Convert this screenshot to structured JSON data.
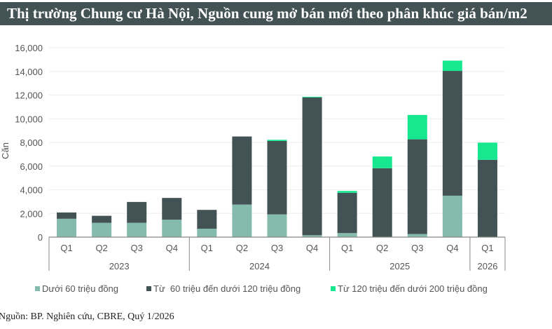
{
  "title": "Thị trường Chung cư Hà Nội, Nguồn cung mở bán mới theo phân khúc giá bán/m2",
  "source": "Nguồn: BP. Nghiên cứu, CBRE, Quý 1/2026",
  "chart_data": {
    "type": "bar",
    "stacked": true,
    "ylabel": "Căn",
    "ylim": [
      0,
      16000
    ],
    "yticks": [
      0,
      2000,
      4000,
      6000,
      8000,
      10000,
      12000,
      14000,
      16000
    ],
    "ytick_labels": [
      "0",
      "2,000",
      "4,000",
      "6,000",
      "8,000",
      "10,000",
      "12,000",
      "14,000",
      "16,000"
    ],
    "grid": true,
    "legend_position": "bottom",
    "categories": [
      "Q1",
      "Q2",
      "Q3",
      "Q4",
      "Q1",
      "Q2",
      "Q3",
      "Q4",
      "Q1",
      "Q2",
      "Q3",
      "Q4",
      "Q1"
    ],
    "groups": [
      {
        "label": "2023",
        "count": 4
      },
      {
        "label": "2024",
        "count": 4
      },
      {
        "label": "2025",
        "count": 4
      },
      {
        "label": "2026",
        "count": 1
      }
    ],
    "series": [
      {
        "name": "Dưới 60 triệu đồng",
        "color": "#84bbad",
        "values": [
          1550,
          1210,
          1210,
          1470,
          710,
          2750,
          1920,
          160,
          340,
          0,
          260,
          3500,
          0
        ]
      },
      {
        "name": "Từ  60 triệu đến dưới 120 triệu đồng",
        "color": "#435254",
        "values": [
          530,
          590,
          1760,
          1840,
          1590,
          5750,
          6200,
          11640,
          3400,
          5820,
          8000,
          10540,
          6530
        ]
      },
      {
        "name": "Từ 120 triệu đến dưới 200 triệu đồng",
        "color": "#17e88f",
        "values": [
          0,
          0,
          0,
          0,
          0,
          0,
          100,
          60,
          160,
          990,
          2060,
          870,
          1450
        ]
      }
    ]
  }
}
